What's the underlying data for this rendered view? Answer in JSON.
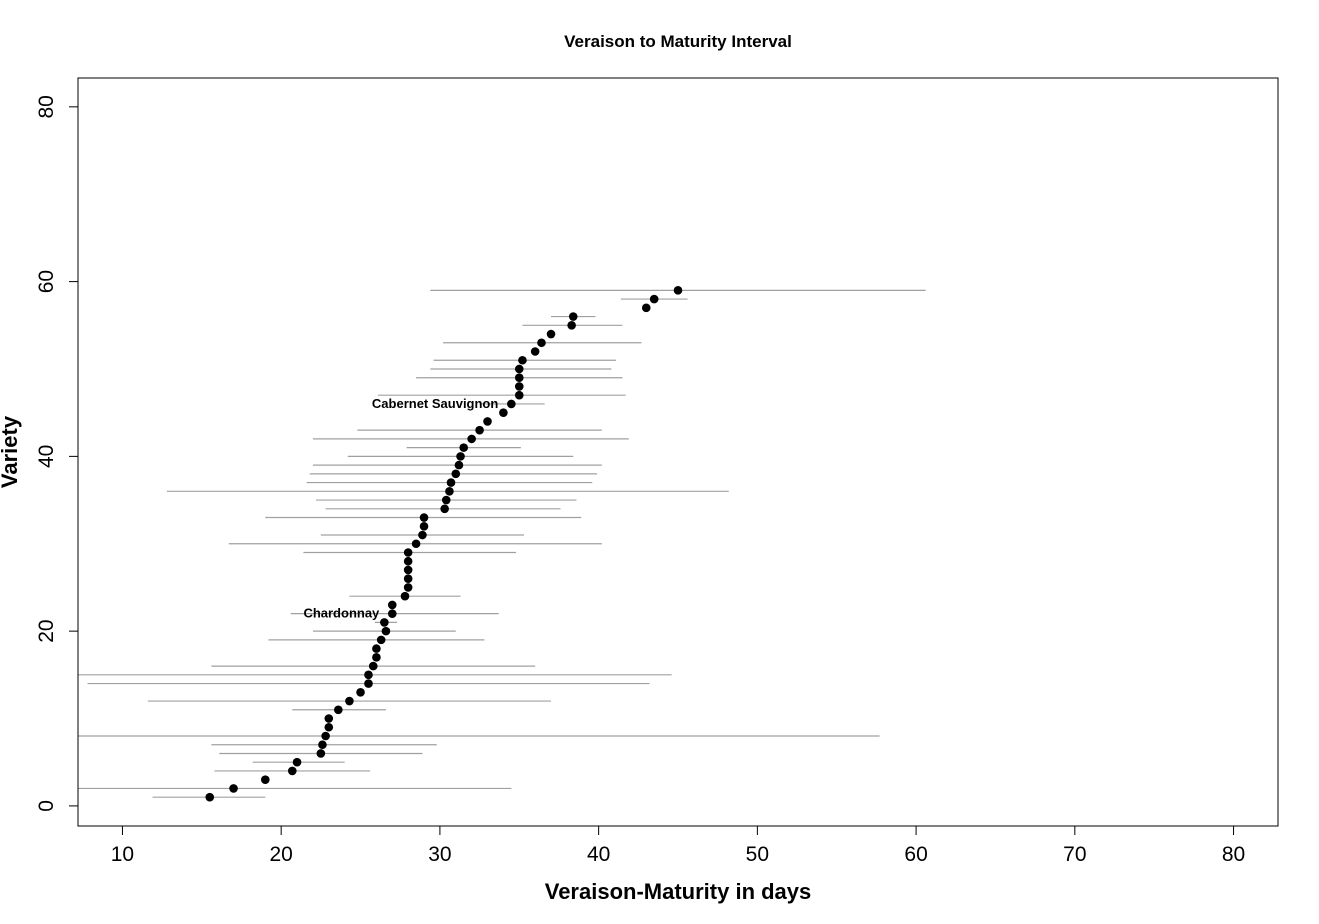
{
  "chart_data": {
    "type": "scatter",
    "title": "Veraison to Maturity Interval",
    "xlabel": "Veraison-Maturity in days",
    "ylabel": "Variety",
    "xlim": [
      7.2,
      82.8
    ],
    "ylim": [
      -2.3,
      83.3
    ],
    "xticks": [
      10,
      20,
      30,
      40,
      50,
      60,
      70,
      80
    ],
    "yticks": [
      0,
      20,
      40,
      60,
      80
    ],
    "grid": false,
    "legend": "none",
    "point_color": "#000000",
    "interval_color": "#a0a0a0",
    "points": [
      {
        "y": 1,
        "x": 15.5,
        "lo": 11.9,
        "hi": 19.0
      },
      {
        "y": 2,
        "x": 17.0,
        "lo": 7.2,
        "hi": 34.5
      },
      {
        "y": 3,
        "x": 19.0
      },
      {
        "y": 4,
        "x": 20.7,
        "lo": 15.8,
        "hi": 25.6
      },
      {
        "y": 5,
        "x": 21.0,
        "lo": 18.2,
        "hi": 24.0
      },
      {
        "y": 6,
        "x": 22.5,
        "lo": 16.1,
        "hi": 28.9
      },
      {
        "y": 7,
        "x": 22.6,
        "lo": 15.6,
        "hi": 29.8
      },
      {
        "y": 8,
        "x": 22.8,
        "lo": 7.2,
        "hi": 57.7
      },
      {
        "y": 9,
        "x": 23.0
      },
      {
        "y": 10,
        "x": 23.0
      },
      {
        "y": 11,
        "x": 23.6,
        "lo": 20.7,
        "hi": 26.6
      },
      {
        "y": 12,
        "x": 24.3,
        "lo": 11.6,
        "hi": 37.0
      },
      {
        "y": 13,
        "x": 25.0
      },
      {
        "y": 14,
        "x": 25.5,
        "lo": 7.8,
        "hi": 43.2
      },
      {
        "y": 15,
        "x": 25.5,
        "lo": 7.2,
        "hi": 44.6
      },
      {
        "y": 16,
        "x": 25.8,
        "lo": 15.6,
        "hi": 36.0
      },
      {
        "y": 17,
        "x": 26.0
      },
      {
        "y": 18,
        "x": 26.0
      },
      {
        "y": 19,
        "x": 26.3,
        "lo": 19.2,
        "hi": 32.8
      },
      {
        "y": 20,
        "x": 26.6,
        "lo": 22.0,
        "hi": 31.0
      },
      {
        "y": 21,
        "x": 26.5,
        "lo": 25.9,
        "hi": 27.3
      },
      {
        "y": 22,
        "x": 27.0,
        "lo": 20.6,
        "hi": 33.7
      },
      {
        "y": 23,
        "x": 27.0
      },
      {
        "y": 24,
        "x": 27.8,
        "lo": 24.3,
        "hi": 31.3
      },
      {
        "y": 25,
        "x": 28.0
      },
      {
        "y": 26,
        "x": 28.0
      },
      {
        "y": 27,
        "x": 28.0
      },
      {
        "y": 28,
        "x": 28.0
      },
      {
        "y": 29,
        "x": 28.0,
        "lo": 21.4,
        "hi": 34.8
      },
      {
        "y": 30,
        "x": 28.5,
        "lo": 16.7,
        "hi": 40.2
      },
      {
        "y": 31,
        "x": 28.9,
        "lo": 22.5,
        "hi": 35.3
      },
      {
        "y": 32,
        "x": 29.0
      },
      {
        "y": 33,
        "x": 29.0,
        "lo": 19.0,
        "hi": 38.9
      },
      {
        "y": 34,
        "x": 30.3,
        "lo": 22.8,
        "hi": 37.6
      },
      {
        "y": 35,
        "x": 30.4,
        "lo": 22.2,
        "hi": 38.6
      },
      {
        "y": 36,
        "x": 30.6,
        "lo": 12.8,
        "hi": 48.2
      },
      {
        "y": 37,
        "x": 30.7,
        "lo": 21.6,
        "hi": 39.6
      },
      {
        "y": 38,
        "x": 31.0,
        "lo": 21.8,
        "hi": 39.9
      },
      {
        "y": 39,
        "x": 31.2,
        "lo": 22.0,
        "hi": 40.2
      },
      {
        "y": 40,
        "x": 31.3,
        "lo": 24.2,
        "hi": 38.4
      },
      {
        "y": 41,
        "x": 31.5,
        "lo": 27.9,
        "hi": 35.1
      },
      {
        "y": 42,
        "x": 32.0,
        "lo": 22.0,
        "hi": 41.9
      },
      {
        "y": 43,
        "x": 32.5,
        "lo": 24.8,
        "hi": 40.2
      },
      {
        "y": 44,
        "x": 33.0
      },
      {
        "y": 45,
        "x": 34.0
      },
      {
        "y": 46,
        "x": 34.5,
        "lo": 32.5,
        "hi": 36.6
      },
      {
        "y": 47,
        "x": 35.0,
        "lo": 26.1,
        "hi": 41.7
      },
      {
        "y": 48,
        "x": 35.0
      },
      {
        "y": 49,
        "x": 35.0,
        "lo": 28.5,
        "hi": 41.5
      },
      {
        "y": 50,
        "x": 35.0,
        "lo": 29.4,
        "hi": 40.8
      },
      {
        "y": 51,
        "x": 35.2,
        "lo": 29.6,
        "hi": 41.1
      },
      {
        "y": 52,
        "x": 36.0
      },
      {
        "y": 53,
        "x": 36.4,
        "lo": 30.2,
        "hi": 42.7
      },
      {
        "y": 54,
        "x": 37.0
      },
      {
        "y": 55,
        "x": 38.3,
        "lo": 35.2,
        "hi": 41.5
      },
      {
        "y": 56,
        "x": 38.4,
        "lo": 37.0,
        "hi": 39.8
      },
      {
        "y": 57,
        "x": 43.0
      },
      {
        "y": 58,
        "x": 43.5,
        "lo": 41.4,
        "hi": 45.6
      },
      {
        "y": 59,
        "x": 45.0,
        "lo": 29.4,
        "hi": 60.6
      }
    ],
    "annotations": [
      {
        "text": "Cabernet Sauvignon",
        "x": 34.5,
        "y": 46
      },
      {
        "text": "Chardonnay",
        "x": 27.0,
        "y": 22
      }
    ]
  }
}
